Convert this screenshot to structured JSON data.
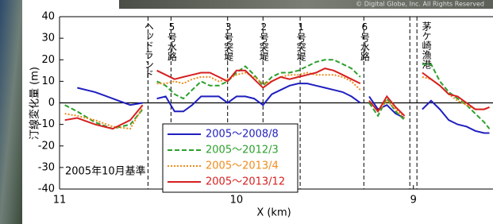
{
  "chart_data": {
    "type": "line",
    "x_label": "X (km)",
    "y_label": "汀線変化量 (m)",
    "annotation": "2005年10月基準",
    "credit": "© Digital Globe, Inc. All Rights Reserved",
    "x": [
      10.97,
      10.9,
      10.8,
      10.7,
      10.6,
      10.53,
      10.5,
      10.45,
      10.4,
      10.35,
      10.3,
      10.25,
      10.2,
      10.15,
      10.1,
      10.05,
      10.0,
      9.95,
      9.9,
      9.85,
      9.8,
      9.75,
      9.7,
      9.65,
      9.6,
      9.55,
      9.5,
      9.45,
      9.4,
      9.35,
      9.3,
      9.28,
      9.25,
      9.2,
      9.15,
      9.1,
      9.05,
      9.0,
      8.95,
      8.9,
      8.85,
      8.8,
      8.75,
      8.7,
      8.65,
      8.6,
      8.57
    ],
    "series": [
      {
        "name": "2005～2008/8",
        "color": "#1f1fbf",
        "dash": "solid",
        "values": [
          null,
          7,
          5,
          2,
          -1,
          0,
          null,
          2,
          3,
          -4,
          -4,
          -1,
          3,
          3,
          3,
          0,
          3,
          3,
          2,
          -1,
          4,
          6,
          8,
          9,
          9,
          8,
          7,
          6,
          5,
          3,
          0,
          null,
          3,
          -3,
          -1,
          -5,
          -7,
          null,
          -3,
          1,
          -3,
          -8,
          -10,
          -11,
          -13,
          -14,
          -14
        ]
      },
      {
        "name": "2005～2012/3",
        "color": "#2ca02c",
        "dash": "dashed",
        "values": [
          -1,
          -4,
          -9,
          -12,
          -10,
          -3,
          null,
          10,
          8,
          4,
          2,
          6,
          10,
          8,
          8,
          10,
          14,
          17,
          13,
          8,
          12,
          14,
          14,
          15,
          17,
          19,
          20,
          20,
          18,
          16,
          12,
          null,
          0,
          -6,
          2,
          -4,
          -8,
          null,
          18,
          18,
          10,
          5,
          2,
          -1,
          -5,
          -9,
          -12
        ]
      },
      {
        "name": "2005～2013/4",
        "color": "#f08c1c",
        "dash": "dotted",
        "values": [
          -5,
          -6,
          -8,
          -11,
          -12,
          -2,
          null,
          9,
          9,
          10,
          9,
          11,
          12,
          12,
          10,
          11,
          13,
          14,
          12,
          9,
          10,
          12,
          13,
          13,
          14,
          13,
          13,
          13,
          12,
          10,
          6,
          null,
          1,
          -4,
          1,
          -3,
          -7,
          null,
          12,
          11,
          8,
          4,
          1,
          -1,
          -3,
          -3,
          -2
        ]
      },
      {
        "name": "2005～2013/12",
        "color": "#d62020",
        "dash": "solid",
        "values": [
          -8,
          -7,
          -10,
          -12,
          -8,
          -1,
          null,
          15,
          13,
          11,
          12,
          13,
          14,
          14,
          12,
          10,
          15,
          15,
          11,
          7,
          10,
          12,
          11,
          12,
          13,
          14,
          16,
          15,
          13,
          11,
          9,
          null,
          1,
          -4,
          3,
          -2,
          -6,
          null,
          14,
          11,
          8,
          4,
          3,
          0,
          -3,
          -3,
          -2
        ]
      }
    ],
    "markers": [
      {
        "x": [
          10.5
        ],
        "label": "ヘッドランド"
      },
      {
        "x": [
          10.37
        ],
        "label": "5号水路"
      },
      {
        "x": [
          10.05
        ],
        "label": "3号突堤"
      },
      {
        "x": [
          9.85
        ],
        "label": "2号突堤"
      },
      {
        "x": [
          9.64
        ],
        "label": "1号突堤"
      },
      {
        "x": [
          9.28
        ],
        "label": "6号水路"
      },
      {
        "x": [
          9.02,
          8.98
        ],
        "label": "茅ケ崎漁港"
      }
    ],
    "xlim": [
      11,
      8.55
    ],
    "xticks": [
      11,
      10,
      9
    ],
    "ylim": [
      -40,
      40
    ],
    "yticks": [
      -40,
      -30,
      -20,
      -10,
      0,
      10,
      20,
      30,
      40
    ],
    "zero_line": true
  }
}
